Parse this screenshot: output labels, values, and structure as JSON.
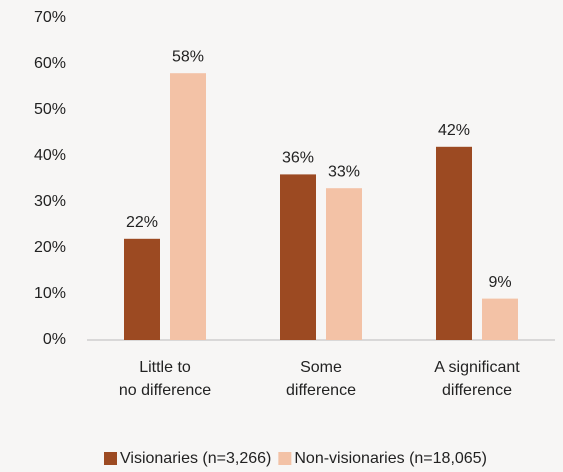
{
  "chart_data": {
    "type": "bar",
    "categories": [
      "Little to\nno difference",
      "Some\ndifference",
      "A significant\ndifference"
    ],
    "series": [
      {
        "name": "Visionaries (n=3,266)",
        "color": "#9c4a22",
        "values": [
          22,
          36,
          42
        ],
        "value_labels": [
          "22%",
          "36%",
          "42%"
        ]
      },
      {
        "name": "Non-visionaries (n=18,065)",
        "color": "#f3c2a6",
        "values": [
          58,
          33,
          9
        ],
        "value_labels": [
          "58%",
          "33%",
          "9%"
        ]
      }
    ],
    "ylim": [
      0,
      70
    ],
    "yticks": [
      {
        "value": 0,
        "label": "0%"
      },
      {
        "value": 10,
        "label": "10%"
      },
      {
        "value": 20,
        "label": "20%"
      },
      {
        "value": 30,
        "label": "30%"
      },
      {
        "value": 40,
        "label": "40%"
      },
      {
        "value": 50,
        "label": "50%"
      },
      {
        "value": 60,
        "label": "60%"
      },
      {
        "value": 70,
        "label": "70%"
      }
    ],
    "grid": false,
    "legend": "bottom"
  }
}
